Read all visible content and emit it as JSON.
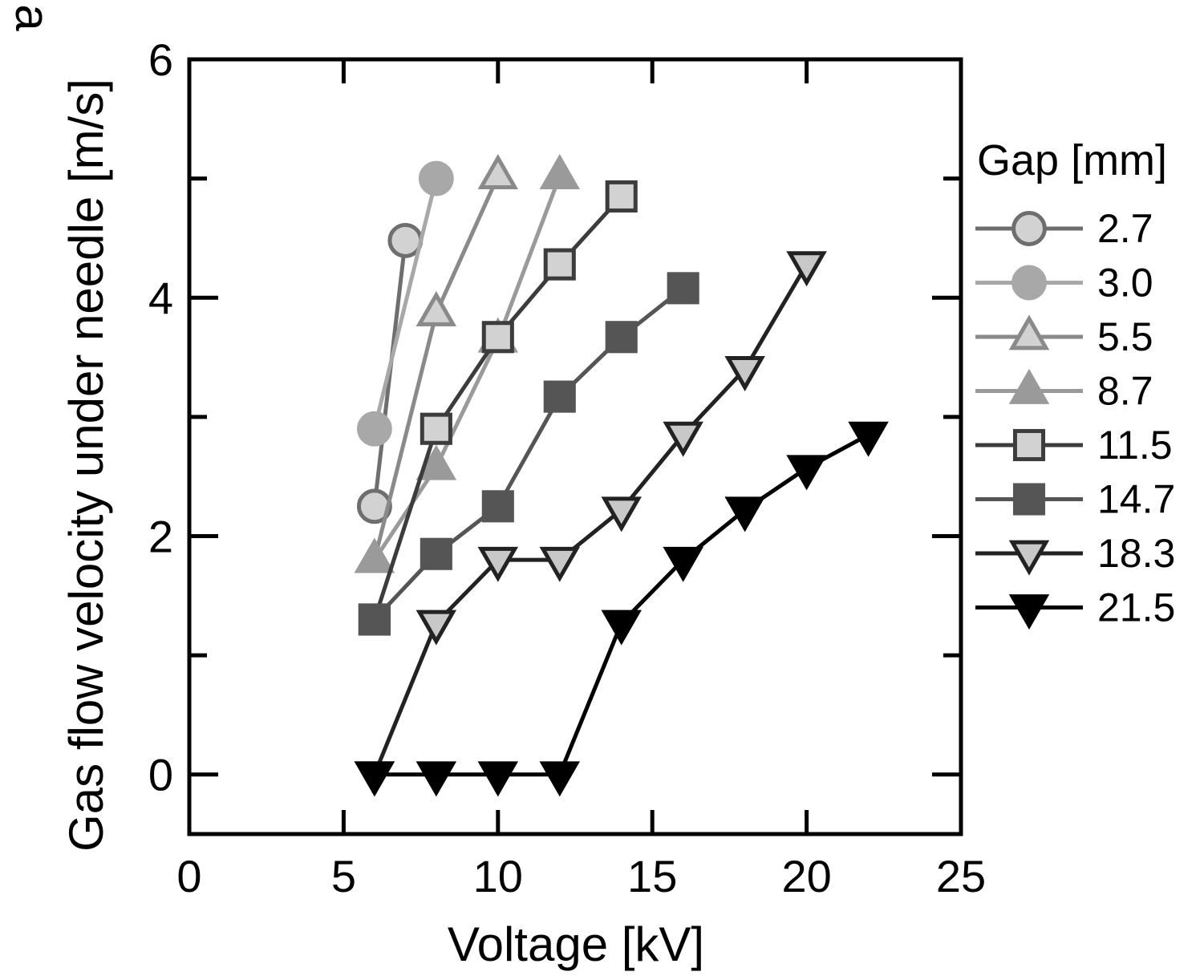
{
  "chart_data": {
    "type": "line",
    "title": "",
    "panel_label": "a",
    "xlabel": "Voltage [kV]",
    "ylabel": "Gas flow velocity under needle [m/s]",
    "xlim": [
      0,
      25
    ],
    "ylim": [
      -0.5,
      6
    ],
    "xticks": [
      0,
      5,
      10,
      15,
      20,
      25
    ],
    "yticks": [
      0,
      2,
      4,
      6
    ],
    "x_minor_ticks": [
      5,
      10,
      15,
      20
    ],
    "y_minor_ticks": [
      1,
      3,
      5
    ],
    "grid": false,
    "legend_title": "Gap [mm]",
    "legend_position": "right",
    "series": [
      {
        "name": "2.7",
        "marker": "circle",
        "filled": false,
        "line_color": "#6e6e6e",
        "marker_fill": "#d2d2d2",
        "marker_stroke": "#6e6e6e",
        "x": [
          6,
          7
        ],
        "y": [
          2.25,
          4.48
        ]
      },
      {
        "name": "3.0",
        "marker": "circle",
        "filled": true,
        "line_color": "#a8a8a8",
        "marker_fill": "#a8a8a8",
        "marker_stroke": "#a8a8a8",
        "x": [
          6,
          8
        ],
        "y": [
          2.9,
          5.0
        ]
      },
      {
        "name": "5.5",
        "marker": "triangle-up",
        "filled": false,
        "line_color": "#8a8a8a",
        "marker_fill": "#d2d2d2",
        "marker_stroke": "#8a8a8a",
        "x": [
          6,
          8,
          10
        ],
        "y": [
          1.8,
          3.87,
          5.02
        ]
      },
      {
        "name": "8.7",
        "marker": "triangle-up",
        "filled": true,
        "line_color": "#9a9a9a",
        "marker_fill": "#9a9a9a",
        "marker_stroke": "#9a9a9a",
        "x": [
          6,
          8,
          10,
          12
        ],
        "y": [
          1.8,
          2.58,
          3.65,
          5.02
        ]
      },
      {
        "name": "11.5",
        "marker": "square",
        "filled": false,
        "line_color": "#3c3c3c",
        "marker_fill": "#d2d2d2",
        "marker_stroke": "#3c3c3c",
        "x": [
          6,
          8,
          10,
          12,
          14
        ],
        "y": [
          1.3,
          2.9,
          3.67,
          4.28,
          4.85
        ]
      },
      {
        "name": "14.7",
        "marker": "square",
        "filled": true,
        "line_color": "#555555",
        "marker_fill": "#555555",
        "marker_stroke": "#555555",
        "x": [
          6,
          8,
          10,
          12,
          14,
          16
        ],
        "y": [
          1.3,
          1.85,
          2.25,
          3.17,
          3.67,
          4.08
        ]
      },
      {
        "name": "18.3",
        "marker": "triangle-down",
        "filled": false,
        "line_color": "#222222",
        "marker_fill": "#c8c8c8",
        "marker_stroke": "#222222",
        "x": [
          6,
          8,
          10,
          12,
          14,
          16,
          18,
          20
        ],
        "y": [
          0.0,
          1.27,
          1.8,
          1.8,
          2.22,
          2.85,
          3.4,
          4.28
        ]
      },
      {
        "name": "21.5",
        "marker": "triangle-down",
        "filled": true,
        "line_color": "#000000",
        "marker_fill": "#000000",
        "marker_stroke": "#000000",
        "x": [
          6,
          8,
          10,
          12,
          14,
          16,
          18,
          20,
          22
        ],
        "y": [
          0.0,
          0.0,
          0.0,
          0.0,
          1.27,
          1.8,
          2.22,
          2.57,
          2.85
        ]
      }
    ]
  }
}
